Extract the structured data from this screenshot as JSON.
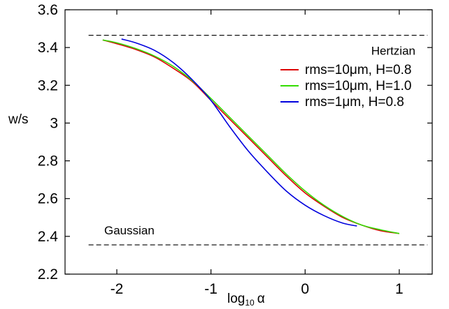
{
  "chart_data": {
    "type": "line",
    "title": "",
    "xlabel": "log",
    "xlabel_sub": "10",
    "xlabel_symbol": "α",
    "ylabel": "w/s",
    "xlim": [
      -2.55,
      1.35
    ],
    "ylim": [
      2.2,
      3.6
    ],
    "x_ticks": [
      -2,
      -1,
      0,
      1
    ],
    "x_tick_labels": [
      "-2",
      "-1",
      "0",
      "1"
    ],
    "y_ticks": [
      2.2,
      2.4,
      2.6,
      2.8,
      3.0,
      3.2,
      3.4,
      3.6
    ],
    "y_tick_labels": [
      "2.2",
      "2.4",
      "2.6",
      "2.8",
      "3",
      "3.2",
      "3.4",
      "3.6"
    ],
    "grid": false,
    "legend_position": "top-right",
    "reference_lines": [
      {
        "label": "Hertzian",
        "y": 3.465,
        "x_range": [
          -2.3,
          1.3
        ],
        "style": "dashed",
        "color": "#000000"
      },
      {
        "label": "Gaussian",
        "y": 2.355,
        "x_range": [
          -2.3,
          1.3
        ],
        "style": "dashed",
        "color": "#000000"
      }
    ],
    "series": [
      {
        "name": "rms=10μm, H=0.8",
        "color": "#dd0000",
        "x": [
          -2.15,
          -2.0,
          -1.8,
          -1.6,
          -1.4,
          -1.2,
          -1.0,
          -0.8,
          -0.6,
          -0.4,
          -0.2,
          0.0,
          0.2,
          0.4,
          0.6,
          0.8,
          1.0
        ],
        "y": [
          3.44,
          3.42,
          3.39,
          3.35,
          3.29,
          3.22,
          3.12,
          3.02,
          2.92,
          2.82,
          2.72,
          2.63,
          2.56,
          2.5,
          2.46,
          2.43,
          2.415
        ]
      },
      {
        "name": "rms=10μm, H=1.0",
        "color": "#33dd00",
        "x": [
          -2.15,
          -2.0,
          -1.8,
          -1.6,
          -1.4,
          -1.2,
          -1.0,
          -0.8,
          -0.6,
          -0.4,
          -0.2,
          0.0,
          0.2,
          0.4,
          0.6,
          0.8,
          1.0
        ],
        "y": [
          3.44,
          3.425,
          3.395,
          3.355,
          3.3,
          3.225,
          3.13,
          3.03,
          2.93,
          2.83,
          2.73,
          2.64,
          2.565,
          2.505,
          2.46,
          2.435,
          2.415
        ]
      },
      {
        "name": "rms=1μm, H=0.8",
        "color": "#0000dd",
        "x": [
          -1.95,
          -1.8,
          -1.6,
          -1.4,
          -1.2,
          -1.0,
          -0.8,
          -0.6,
          -0.4,
          -0.2,
          0.0,
          0.2,
          0.4,
          0.55
        ],
        "y": [
          3.445,
          3.425,
          3.385,
          3.32,
          3.23,
          3.12,
          2.98,
          2.85,
          2.74,
          2.64,
          2.565,
          2.51,
          2.47,
          2.455
        ]
      }
    ],
    "legend_symbol": "μ"
  }
}
